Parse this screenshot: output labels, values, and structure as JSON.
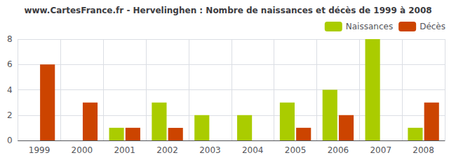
{
  "chart_data": {
    "type": "bar",
    "title": "www.CartesFrance.fr - Hervelinghen : Nombre de naissances et décès de 1999 à 2008",
    "categories": [
      "1999",
      "2000",
      "2001",
      "2002",
      "2003",
      "2004",
      "2005",
      "2006",
      "2007",
      "2008"
    ],
    "series": [
      {
        "name": "Naissances",
        "color": "#aacc00",
        "values": [
          0,
          0,
          1,
          3,
          2,
          2,
          3,
          4,
          8,
          1
        ]
      },
      {
        "name": "Décès",
        "color": "#cc4400",
        "values": [
          6,
          3,
          1,
          1,
          0,
          0,
          1,
          2,
          0,
          3
        ]
      }
    ],
    "ylim": [
      0,
      8
    ],
    "yticks": [
      0,
      2,
      4,
      6,
      8
    ],
    "grid": true,
    "legend": "upper right"
  }
}
